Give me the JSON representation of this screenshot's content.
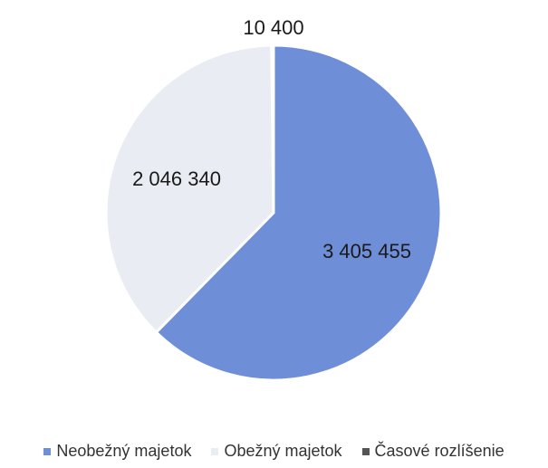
{
  "chart_data": {
    "type": "pie",
    "labels": [
      "Neobežný majetok",
      "Obežný majetok",
      "Časové rozlíšenie"
    ],
    "values": [
      3405455,
      2046340,
      10400
    ],
    "value_labels": [
      "3 405 455",
      "2 046 340",
      "10 400"
    ],
    "colors": [
      "#6e8fd8",
      "#e9ecf3",
      "#555555"
    ],
    "start_angle_deg": 0,
    "direction": "clockwise",
    "legend_position": "bottom"
  }
}
